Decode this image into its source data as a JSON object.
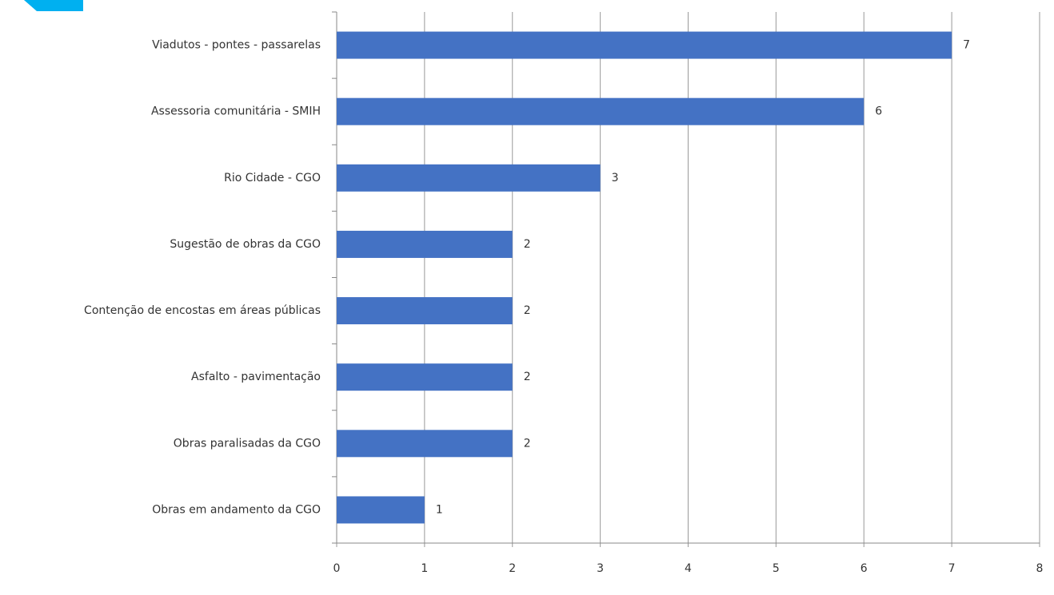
{
  "chart_data": {
    "type": "bar",
    "horizontal": true,
    "categories": [
      "Viadutos - pontes - passarelas",
      "Assessoria comunitária - SMIH",
      "Rio Cidade - CGO",
      "Sugestão de obras da CGO",
      "Contenção de encostas em áreas públicas",
      "Asfalto - pavimentação",
      "Obras paralisadas da CGO",
      "Obras em andamento da CGO"
    ],
    "values": [
      7,
      6,
      3,
      2,
      2,
      2,
      2,
      1
    ],
    "color": "#4472c4",
    "xlim": [
      0,
      8
    ],
    "xticks": [
      0,
      1,
      2,
      3,
      4,
      5,
      6,
      7,
      8
    ],
    "grid": true
  }
}
